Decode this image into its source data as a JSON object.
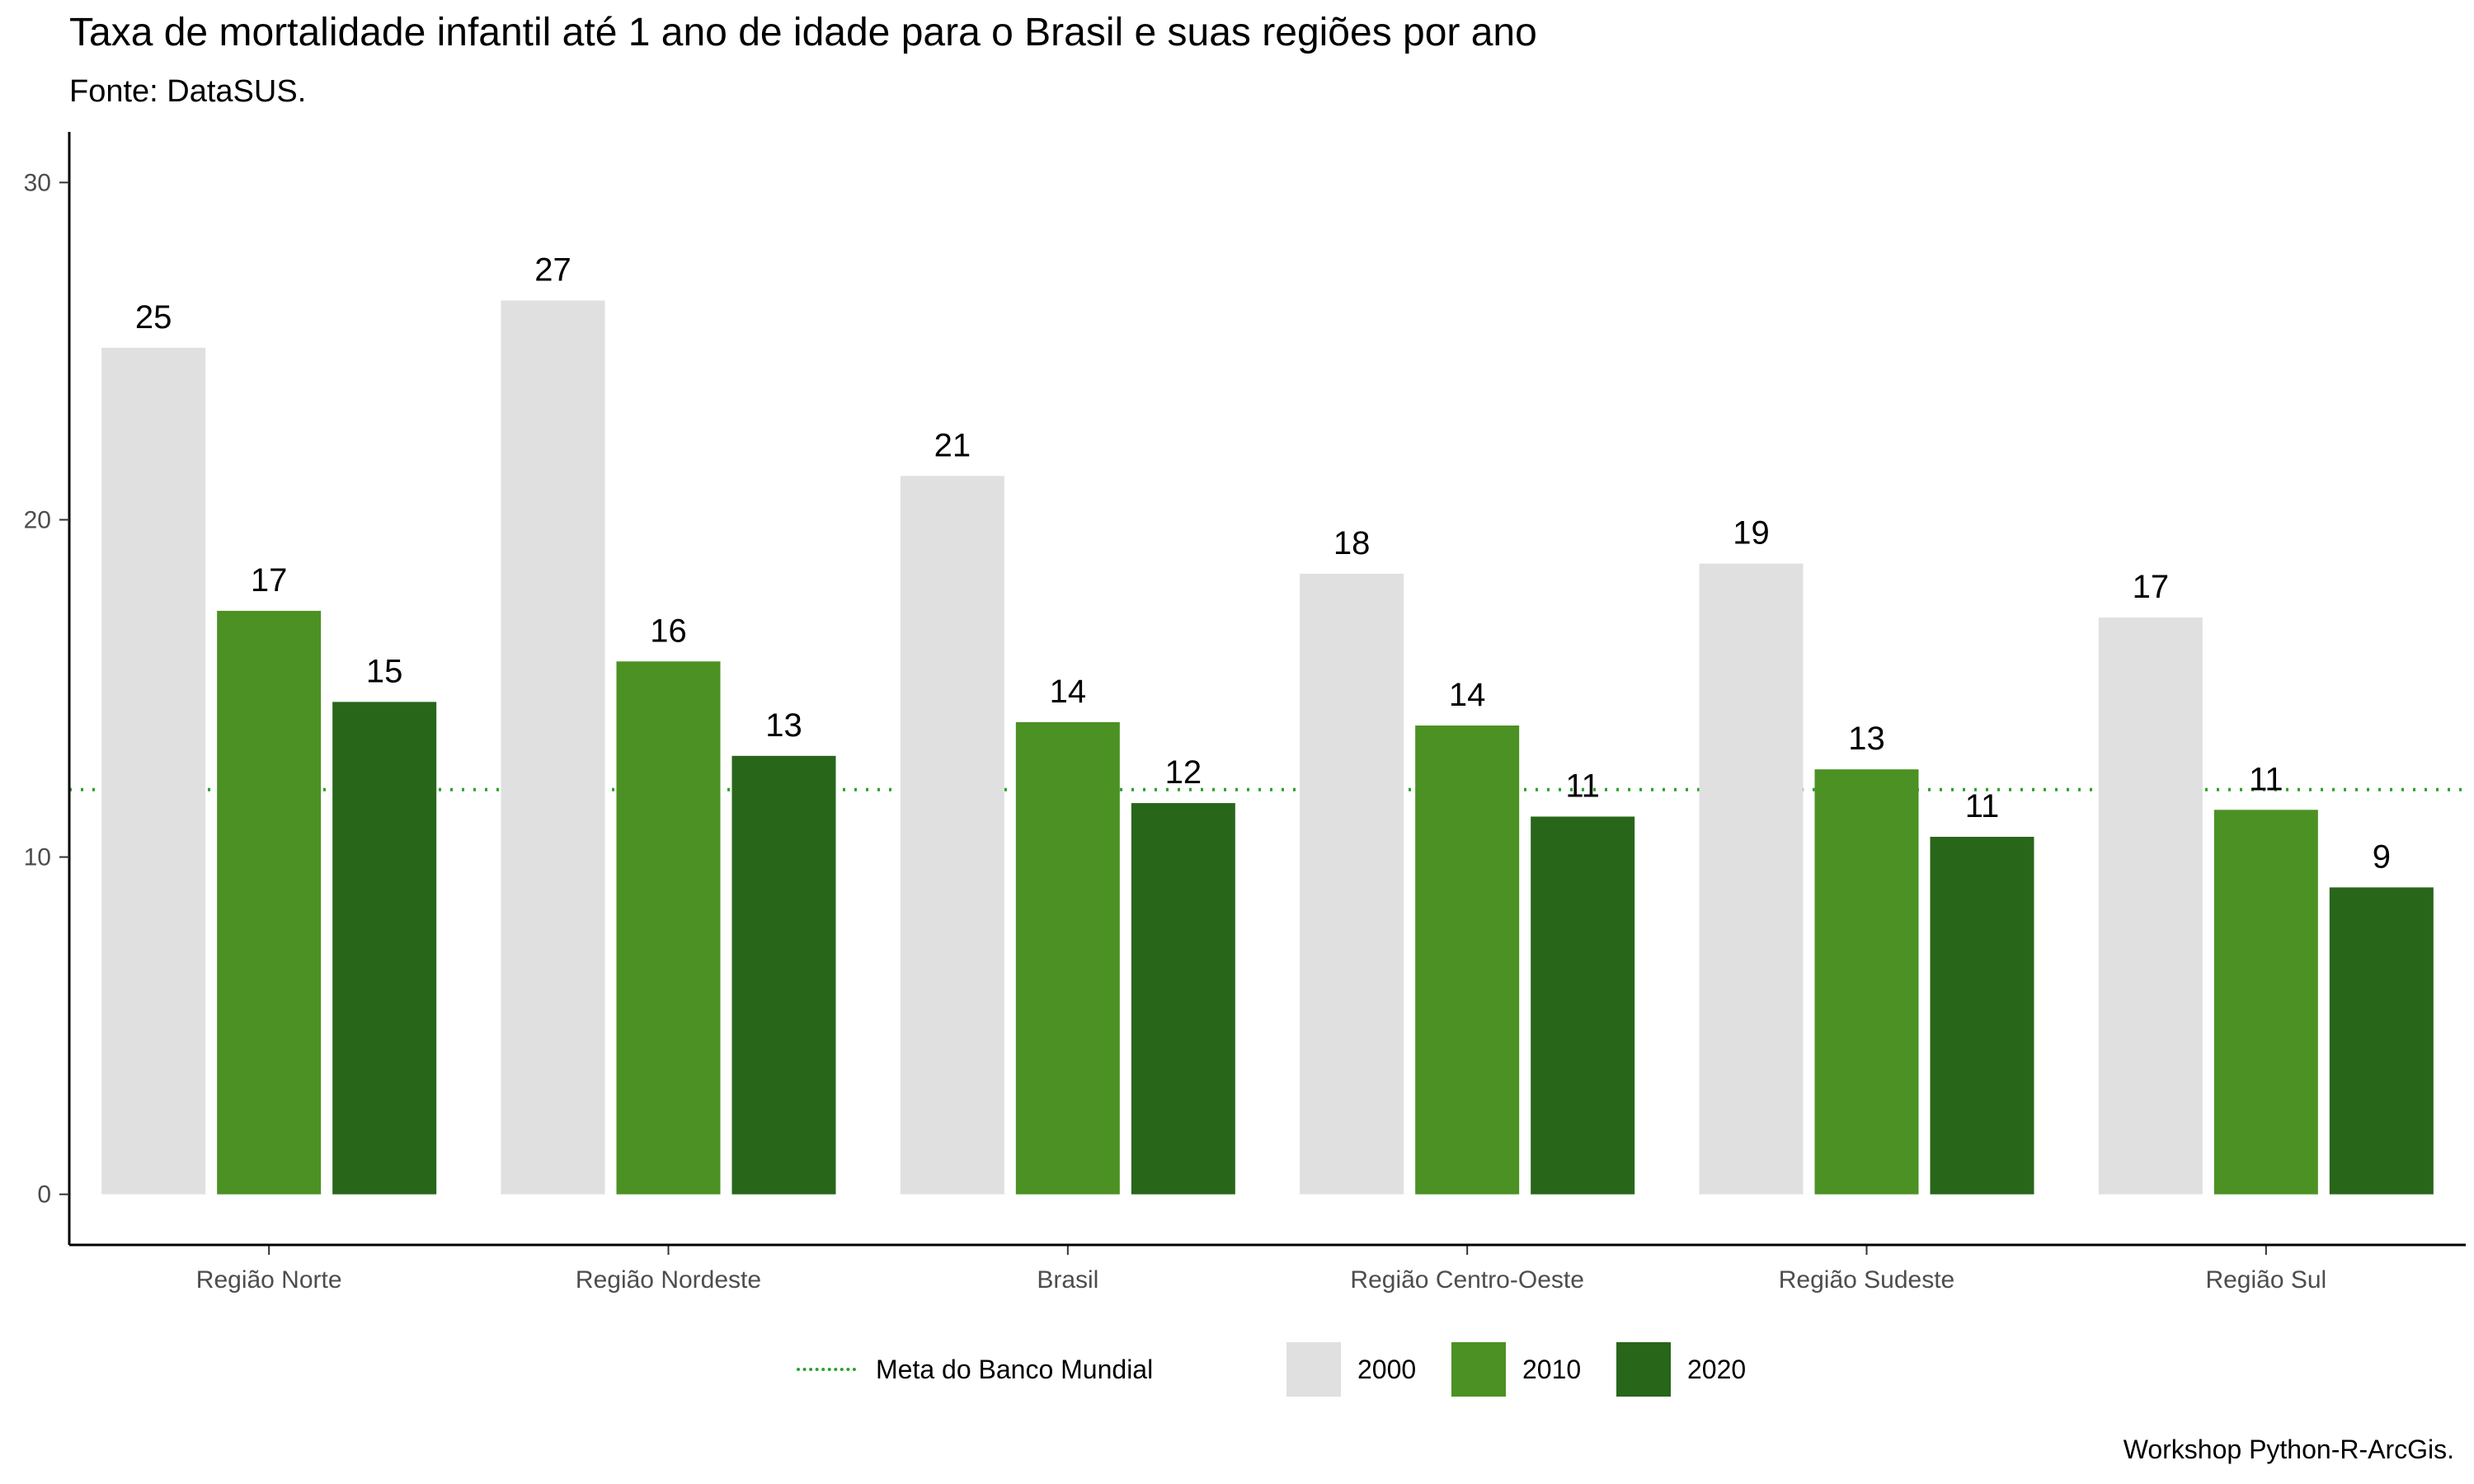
{
  "title": "Taxa de mortalidade infantil até 1 ano de idade para o Brasil e suas regiões por ano",
  "subtitle": "Fonte: DataSUS.",
  "caption": "Workshop Python-R-ArcGis.",
  "colors": {
    "2000": "#e0e0e0",
    "2010": "#4c9123",
    "2020": "#28661a",
    "target": "#2ea02e"
  },
  "legend": {
    "target_label": "Meta do Banco Mundial",
    "series": [
      "2000",
      "2010",
      "2020"
    ]
  },
  "chart_data": {
    "type": "bar",
    "title": "Taxa de mortalidade infantil até 1 ano de idade para o Brasil e suas regiões por ano",
    "subtitle": "Fonte: DataSUS.",
    "xlabel": "",
    "ylabel": "",
    "ylim": [
      -1.5,
      31.5
    ],
    "yticks": [
      0,
      10,
      20,
      30
    ],
    "grid": false,
    "legend_position": "bottom",
    "categories": [
      "Região Norte",
      "Região Nordeste",
      "Brasil",
      "Região Centro-Oeste",
      "Região Sudeste",
      "Região Sul"
    ],
    "series": [
      {
        "name": "2000",
        "values": [
          25.1,
          26.5,
          21.3,
          18.4,
          18.7,
          17.1
        ],
        "labels": [
          "25",
          "27",
          "21",
          "18",
          "19",
          "17"
        ]
      },
      {
        "name": "2010",
        "values": [
          17.3,
          15.8,
          14.0,
          13.9,
          12.6,
          11.4
        ],
        "labels": [
          "17",
          "16",
          "14",
          "14",
          "13",
          "11"
        ]
      },
      {
        "name": "2020",
        "values": [
          14.6,
          13.0,
          11.6,
          11.2,
          10.6,
          9.1
        ],
        "labels": [
          "15",
          "13",
          "12",
          "11",
          "11",
          "9"
        ]
      }
    ],
    "reference_line": {
      "name": "Meta do Banco Mundial",
      "value": 12,
      "style": "dotted"
    }
  }
}
